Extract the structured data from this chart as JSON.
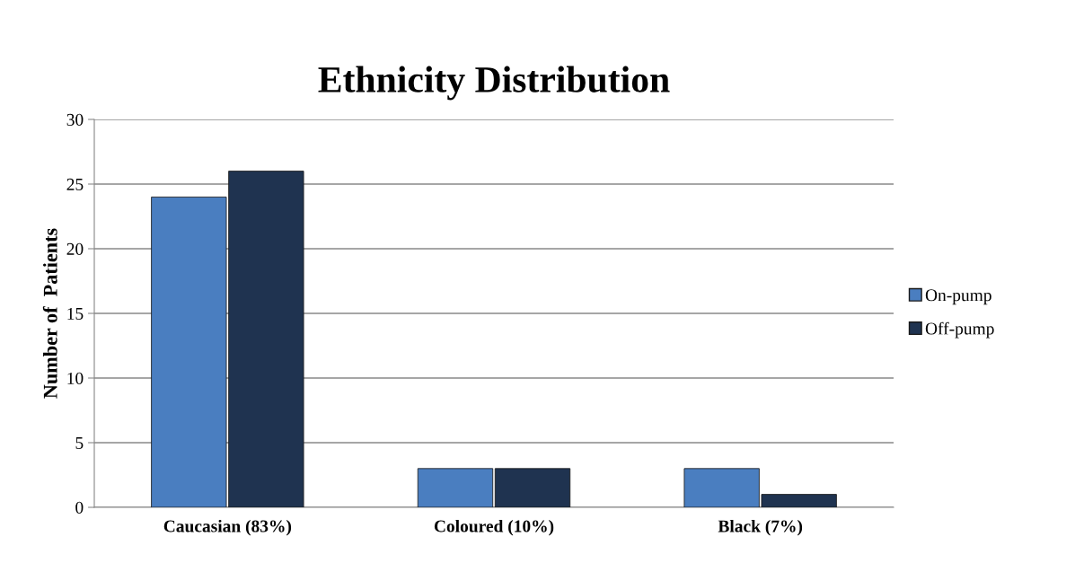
{
  "chart_data": {
    "type": "bar",
    "title": "Ethnicity Distribution",
    "ylabel": "Number of  Patients",
    "categories": [
      "Caucasian (83%)",
      "Coloured (10%)",
      "Black (7%)"
    ],
    "series": [
      {
        "name": "On-pump",
        "color": "#4a7ec0",
        "values": [
          24,
          3,
          3
        ]
      },
      {
        "name": "Off-pump",
        "color": "#1f3350",
        "values": [
          26,
          3,
          1
        ]
      }
    ],
    "ylim": [
      0,
      30
    ],
    "yticks": [
      0,
      5,
      10,
      15,
      20,
      25,
      30
    ],
    "grid": "y",
    "legend": "right"
  }
}
